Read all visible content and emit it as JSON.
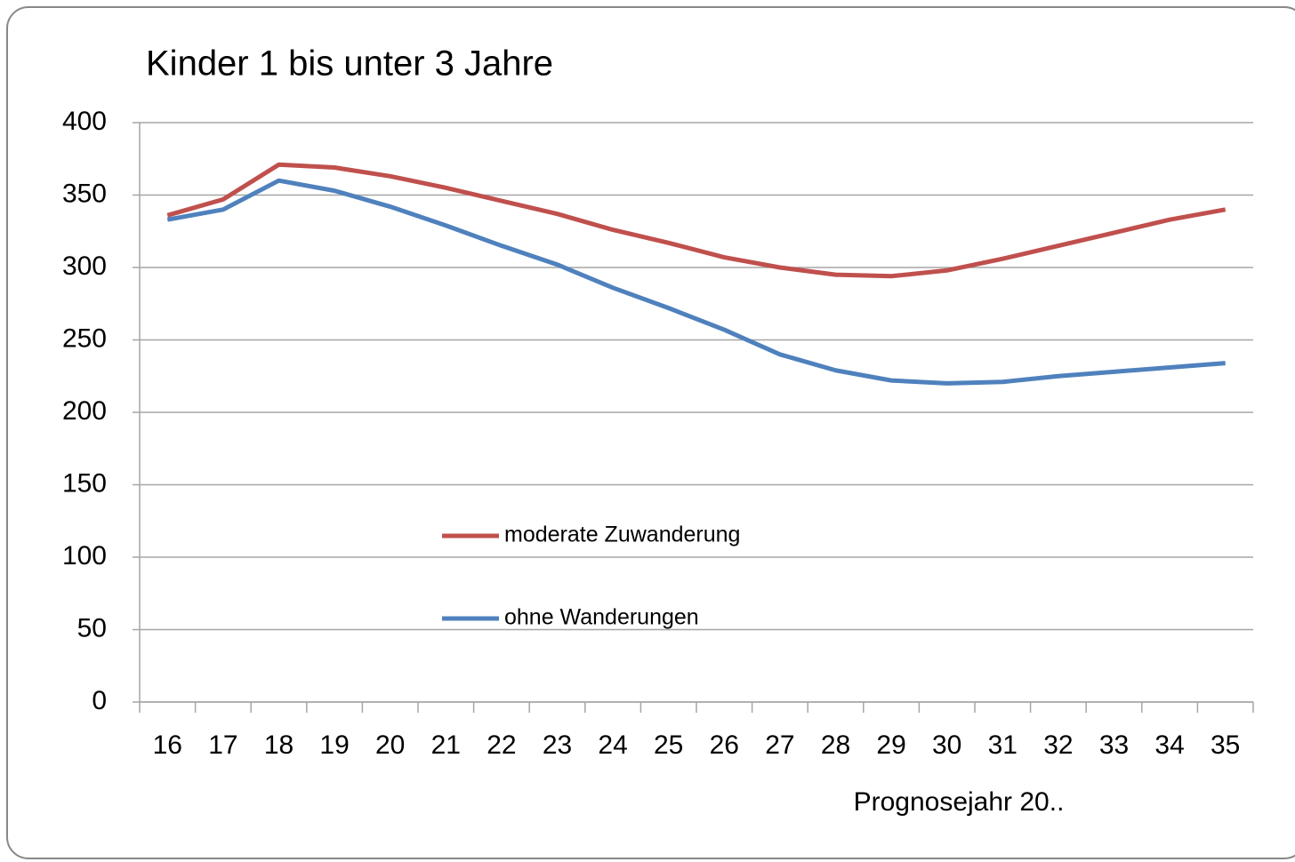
{
  "chart_data": {
    "type": "line",
    "title": "Kinder 1 bis unter 3 Jahre",
    "x_label": "Prognosejahr 20..",
    "categories": [
      "16",
      "17",
      "18",
      "19",
      "20",
      "21",
      "22",
      "23",
      "24",
      "25",
      "26",
      "27",
      "28",
      "29",
      "30",
      "31",
      "32",
      "33",
      "34",
      "35"
    ],
    "series": [
      {
        "name": "moderate Zuwanderung",
        "color": "#c0504d",
        "values": [
          336,
          347,
          371,
          369,
          363,
          355,
          346,
          337,
          326,
          317,
          307,
          300,
          295,
          294,
          298,
          306,
          315,
          324,
          333,
          340
        ]
      },
      {
        "name": "ohne Wanderungen",
        "color": "#4f81bd",
        "values": [
          333,
          340,
          360,
          353,
          342,
          329,
          315,
          302,
          286,
          272,
          257,
          240,
          229,
          222,
          220,
          221,
          225,
          228,
          231,
          234
        ]
      }
    ],
    "ylim": [
      0,
      400
    ],
    "yticks": [
      0,
      50,
      100,
      150,
      200,
      250,
      300,
      350,
      400
    ],
    "grid": true
  }
}
